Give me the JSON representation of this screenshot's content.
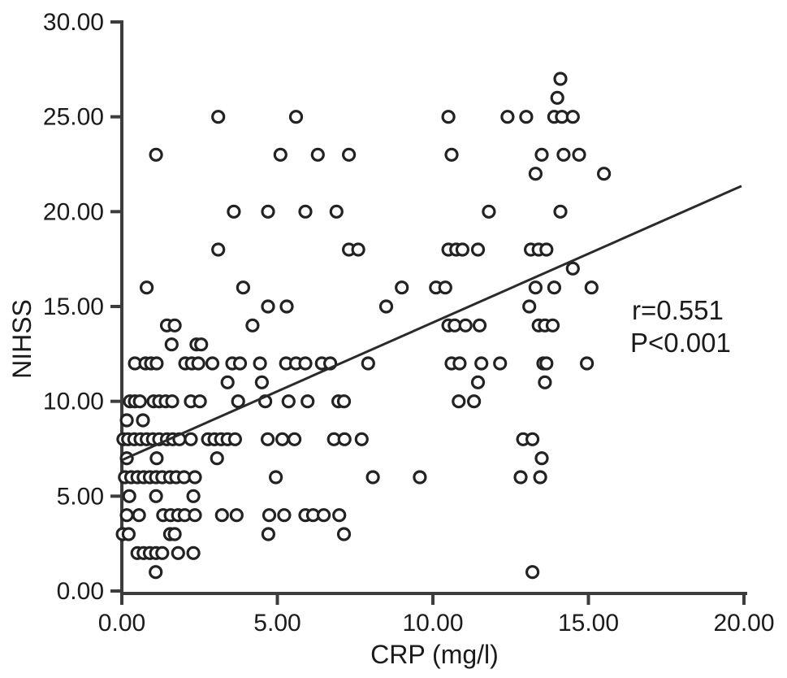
{
  "chart_data": {
    "type": "scatter",
    "title": "",
    "xlabel": "CRP (mg/l)",
    "ylabel": "NIHSS",
    "xlim": [
      0,
      20
    ],
    "ylim": [
      0,
      30
    ],
    "grid": false,
    "legend": "none",
    "x_axis": {
      "tick_values": [
        0,
        5,
        10,
        15,
        20
      ],
      "tick_labels": [
        "0.00",
        "5.00",
        "10.00",
        "15.00",
        "20.00"
      ]
    },
    "y_axis": {
      "tick_values": [
        0,
        5,
        10,
        15,
        20,
        25,
        30
      ],
      "tick_labels": [
        "0.00",
        "5.00",
        "10.00",
        "15.00",
        "20.00",
        "25.00",
        "30.00"
      ]
    },
    "annotation": {
      "line1": "r=0.551",
      "line2": "P<0.001"
    },
    "regression_line": {
      "x1": 0,
      "y1": 6.9,
      "x2": 19.92,
      "y2": 21.35
    },
    "marker": {
      "shape": "open-circle",
      "stroke_color": "#222222",
      "fill_color": "#ffffff"
    },
    "axis_color": "#3d3d3d",
    "line_color": "#2a2a2a",
    "points": [
      [
        14.1,
        27
      ],
      [
        14.0,
        26
      ],
      [
        3.1,
        25
      ],
      [
        5.6,
        25
      ],
      [
        10.5,
        25
      ],
      [
        12.4,
        25
      ],
      [
        13.0,
        25
      ],
      [
        13.9,
        25
      ],
      [
        14.15,
        25
      ],
      [
        14.5,
        25
      ],
      [
        1.1,
        23
      ],
      [
        5.1,
        23
      ],
      [
        6.3,
        23
      ],
      [
        7.3,
        23
      ],
      [
        10.6,
        23
      ],
      [
        13.5,
        23
      ],
      [
        14.2,
        23
      ],
      [
        14.7,
        23
      ],
      [
        13.3,
        22
      ],
      [
        15.5,
        22
      ],
      [
        3.6,
        20
      ],
      [
        4.7,
        20
      ],
      [
        5.9,
        20
      ],
      [
        6.9,
        20
      ],
      [
        11.8,
        20
      ],
      [
        14.1,
        20
      ],
      [
        3.1,
        18
      ],
      [
        7.3,
        18
      ],
      [
        7.6,
        18
      ],
      [
        10.5,
        18
      ],
      [
        10.75,
        18
      ],
      [
        10.95,
        18
      ],
      [
        11.45,
        18
      ],
      [
        13.15,
        18
      ],
      [
        13.4,
        18
      ],
      [
        13.65,
        18
      ],
      [
        14.5,
        17
      ],
      [
        0.8,
        16
      ],
      [
        3.9,
        16
      ],
      [
        9.0,
        16
      ],
      [
        10.1,
        16
      ],
      [
        10.4,
        16
      ],
      [
        13.3,
        16
      ],
      [
        13.9,
        16
      ],
      [
        15.1,
        16
      ],
      [
        4.7,
        15
      ],
      [
        5.3,
        15
      ],
      [
        8.5,
        15
      ],
      [
        13.1,
        15
      ],
      [
        1.45,
        14
      ],
      [
        1.7,
        14
      ],
      [
        4.2,
        14
      ],
      [
        10.5,
        14
      ],
      [
        10.7,
        14
      ],
      [
        11.05,
        14
      ],
      [
        11.5,
        14
      ],
      [
        13.4,
        14
      ],
      [
        13.6,
        14
      ],
      [
        13.85,
        14
      ],
      [
        1.6,
        13
      ],
      [
        2.4,
        13
      ],
      [
        2.55,
        13
      ],
      [
        0.42,
        12
      ],
      [
        0.76,
        12
      ],
      [
        0.94,
        12
      ],
      [
        1.12,
        12
      ],
      [
        2.04,
        12
      ],
      [
        2.25,
        12
      ],
      [
        2.46,
        12
      ],
      [
        2.91,
        12
      ],
      [
        3.55,
        12
      ],
      [
        3.8,
        12
      ],
      [
        4.44,
        12
      ],
      [
        5.28,
        12
      ],
      [
        5.6,
        12
      ],
      [
        5.9,
        12
      ],
      [
        6.43,
        12
      ],
      [
        6.7,
        12
      ],
      [
        7.92,
        12
      ],
      [
        10.6,
        12
      ],
      [
        10.86,
        12
      ],
      [
        11.56,
        12
      ],
      [
        12.16,
        12
      ],
      [
        13.55,
        12
      ],
      [
        13.65,
        12
      ],
      [
        14.95,
        12
      ],
      [
        3.4,
        11
      ],
      [
        4.5,
        11
      ],
      [
        11.45,
        11
      ],
      [
        13.6,
        11
      ],
      [
        0.26,
        10
      ],
      [
        0.42,
        10
      ],
      [
        0.58,
        10
      ],
      [
        1.02,
        10
      ],
      [
        1.2,
        10
      ],
      [
        1.41,
        10
      ],
      [
        1.62,
        10
      ],
      [
        2.22,
        10
      ],
      [
        2.51,
        10
      ],
      [
        3.74,
        10
      ],
      [
        4.61,
        10
      ],
      [
        5.36,
        10
      ],
      [
        5.97,
        10
      ],
      [
        6.96,
        10
      ],
      [
        7.14,
        10
      ],
      [
        10.83,
        10
      ],
      [
        11.32,
        10
      ],
      [
        0.16,
        9
      ],
      [
        0.68,
        9
      ],
      [
        0.05,
        8
      ],
      [
        0.2,
        8
      ],
      [
        0.4,
        8
      ],
      [
        0.6,
        8
      ],
      [
        0.8,
        8
      ],
      [
        1.0,
        8
      ],
      [
        1.2,
        8
      ],
      [
        1.45,
        8
      ],
      [
        1.64,
        8
      ],
      [
        1.85,
        8
      ],
      [
        2.22,
        8
      ],
      [
        2.77,
        8
      ],
      [
        2.98,
        8
      ],
      [
        3.19,
        8
      ],
      [
        3.4,
        8
      ],
      [
        3.64,
        8
      ],
      [
        4.69,
        8
      ],
      [
        5.16,
        8
      ],
      [
        5.55,
        8
      ],
      [
        6.82,
        8
      ],
      [
        7.16,
        8
      ],
      [
        7.71,
        8
      ],
      [
        12.9,
        8
      ],
      [
        13.2,
        8
      ],
      [
        0.16,
        7
      ],
      [
        1.12,
        7
      ],
      [
        3.06,
        7
      ],
      [
        13.5,
        7
      ],
      [
        0.1,
        6
      ],
      [
        0.3,
        6
      ],
      [
        0.5,
        6
      ],
      [
        0.7,
        6
      ],
      [
        0.9,
        6
      ],
      [
        1.1,
        6
      ],
      [
        1.3,
        6
      ],
      [
        1.55,
        6
      ],
      [
        1.75,
        6
      ],
      [
        2.0,
        6
      ],
      [
        2.35,
        6
      ],
      [
        4.95,
        6
      ],
      [
        8.07,
        6
      ],
      [
        9.58,
        6
      ],
      [
        12.82,
        6
      ],
      [
        13.45,
        6
      ],
      [
        0.24,
        5
      ],
      [
        1.1,
        5
      ],
      [
        2.3,
        5
      ],
      [
        0.16,
        4
      ],
      [
        0.55,
        4
      ],
      [
        1.33,
        4
      ],
      [
        1.57,
        4
      ],
      [
        1.81,
        4
      ],
      [
        2.02,
        4
      ],
      [
        2.35,
        4
      ],
      [
        3.22,
        4
      ],
      [
        3.69,
        4
      ],
      [
        4.74,
        4
      ],
      [
        5.22,
        4
      ],
      [
        5.9,
        4
      ],
      [
        6.15,
        4
      ],
      [
        6.49,
        4
      ],
      [
        6.99,
        4
      ],
      [
        0.03,
        3
      ],
      [
        0.22,
        3
      ],
      [
        1.55,
        3
      ],
      [
        1.7,
        3
      ],
      [
        4.71,
        3
      ],
      [
        7.14,
        3
      ],
      [
        0.5,
        2
      ],
      [
        0.7,
        2
      ],
      [
        0.9,
        2
      ],
      [
        1.1,
        2
      ],
      [
        1.3,
        2
      ],
      [
        1.81,
        2
      ],
      [
        2.3,
        2
      ],
      [
        1.09,
        1
      ],
      [
        13.2,
        1
      ]
    ]
  }
}
